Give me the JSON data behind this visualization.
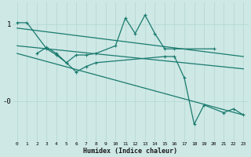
{
  "xlabel": "Humidex (Indice chaleur)",
  "bg_color": "#cde8e5",
  "grid_color": "#b0d4d0",
  "line_color": "#1a7a6e",
  "xlim": [
    -0.5,
    23.5
  ],
  "ylim": [
    -0.52,
    1.28
  ],
  "ytick_positions": [
    1.0,
    0.0
  ],
  "ytick_labels": [
    "1",
    "-0"
  ],
  "trend1": {
    "x": [
      0,
      23
    ],
    "y": [
      0.95,
      0.58
    ]
  },
  "trend2": {
    "x": [
      0,
      23
    ],
    "y": [
      0.72,
      0.42
    ]
  },
  "trend3": {
    "x": [
      0,
      23
    ],
    "y": [
      0.62,
      -0.18
    ]
  },
  "jagged_x1": [
    0,
    1,
    3,
    4,
    5,
    6,
    7,
    8,
    10,
    11,
    12,
    13,
    14,
    15,
    16,
    20
  ],
  "jagged_y1": [
    1.02,
    1.02,
    0.68,
    0.6,
    0.5,
    0.6,
    0.6,
    0.62,
    0.72,
    1.08,
    0.88,
    1.12,
    0.88,
    0.68,
    0.68,
    0.68
  ],
  "jagged_x2": [
    2,
    3,
    4,
    5,
    6,
    7,
    8,
    15,
    16,
    17,
    18,
    19,
    21,
    22,
    23
  ],
  "jagged_y2": [
    0.62,
    0.7,
    0.62,
    0.5,
    0.38,
    0.45,
    0.5,
    0.58,
    0.58,
    0.3,
    -0.3,
    -0.05,
    -0.15,
    -0.1,
    -0.18
  ]
}
